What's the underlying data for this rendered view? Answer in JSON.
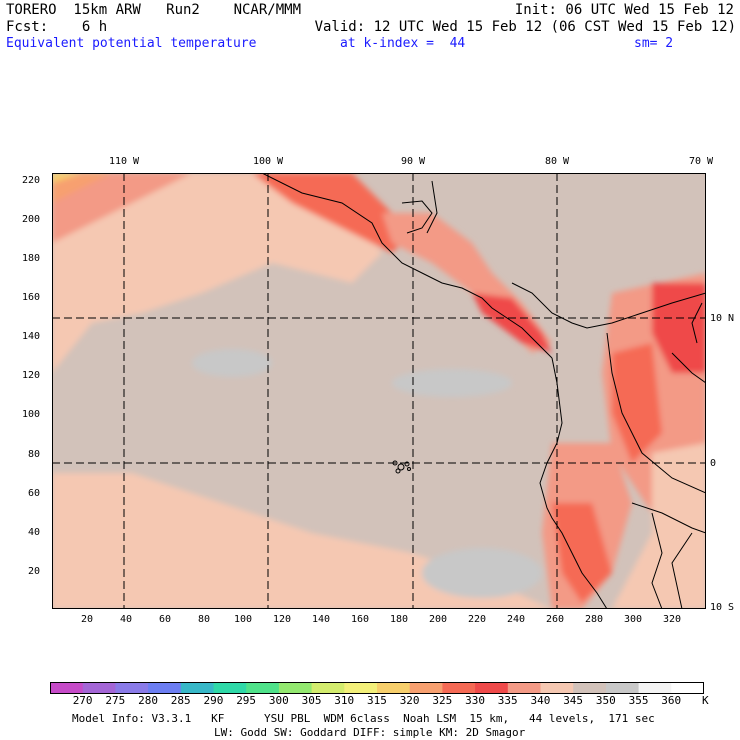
{
  "header": {
    "line1_left": "TORERO  15km ARW   Run2    NCAR/MMM",
    "line1_right": "Init: 06 UTC Wed 15 Feb 12",
    "line2_left": "Fcst:    6 h",
    "line2_right": "Valid: 12 UTC Wed 15 Feb 12 (06 CST Wed 15 Feb 12)",
    "line3_field": "Equivalent potential temperature",
    "line3_level": "at k-index =  44",
    "line3_smooth": "sm= 2"
  },
  "map": {
    "top_lon_labels": [
      "110 W",
      "100 W",
      "90 W",
      "80 W",
      "70 W"
    ],
    "right_lat_labels": [
      "10 N",
      "0",
      "10 S"
    ],
    "y_grid_labels": [
      "220",
      "200",
      "180",
      "160",
      "140",
      "120",
      "100",
      "80",
      "60",
      "40",
      "20"
    ],
    "x_grid_labels": [
      "20",
      "40",
      "60",
      "80",
      "100",
      "120",
      "140",
      "160",
      "180",
      "200",
      "220",
      "240",
      "260",
      "280",
      "300",
      "320"
    ]
  },
  "colorbar": {
    "unit": "K",
    "ticks": [
      "270",
      "275",
      "280",
      "285",
      "290",
      "295",
      "300",
      "305",
      "310",
      "315",
      "320",
      "325",
      "330",
      "335",
      "340",
      "345",
      "350",
      "355",
      "360"
    ],
    "colors": [
      "#c64bc8",
      "#a466d6",
      "#8a7be8",
      "#6c7ef2",
      "#38b8c8",
      "#2fd9a8",
      "#4fe28a",
      "#93e870",
      "#d3ec6e",
      "#f3f07a",
      "#f7cf6c",
      "#f7a070",
      "#f56a55",
      "#ef4a4a",
      "#f39a86",
      "#f5c8b2",
      "#d2c2ba",
      "#c8c8c8",
      "#f4f4f4",
      "#ffffff"
    ]
  },
  "footer": {
    "line1": "Model Info: V3.3.1   KF      YSU PBL  WDM 6class  Noah LSM  15 km,   44 levels,  171 sec",
    "line2": "LW: Godd SW: Goddard DIFF: simple KM: 2D Smagor"
  }
}
